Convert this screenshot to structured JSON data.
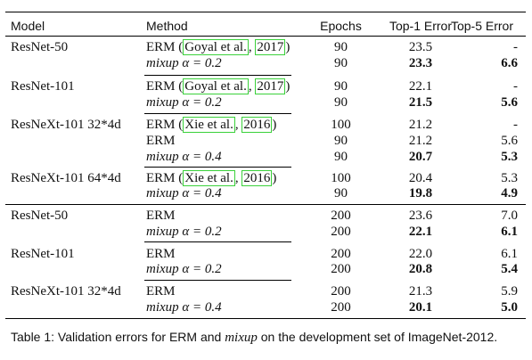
{
  "table": {
    "headers": {
      "model": "Model",
      "method": "Method",
      "epochs": "Epochs",
      "top1": "Top-1 Error",
      "top5": "Top-5 Error"
    },
    "rows": [
      {
        "model": "ResNet-50",
        "method_plain": "ERM",
        "cite_a": "Goyal et al.",
        "cite_b": "2017",
        "method_mixup": "mixup",
        "alpha": "α = 0.2",
        "epochs_1": "90",
        "top1_1": "23.5",
        "top5_1": "-",
        "epochs_2": "90",
        "top1_2": "23.3",
        "top5_2": "6.6"
      },
      {
        "model": "ResNet-101",
        "method_plain": "ERM",
        "cite_a": "Goyal et al.",
        "cite_b": "2017",
        "method_mixup": "mixup",
        "alpha": "α = 0.2",
        "epochs_1": "90",
        "top1_1": "22.1",
        "top5_1": "-",
        "epochs_2": "90",
        "top1_2": "21.5",
        "top5_2": "5.6"
      },
      {
        "model": "ResNeXt-101 32*4d",
        "method_plain": "ERM",
        "cite_a": "Xie et al.",
        "cite_b": "2016",
        "method_erm2": "ERM",
        "method_mixup": "mixup",
        "alpha": "α = 0.4",
        "epochs_1": "100",
        "top1_1": "21.2",
        "top5_1": "-",
        "epochs_2": "90",
        "top1_2": "21.2",
        "top5_2": "5.6",
        "epochs_3": "90",
        "top1_3": "20.7",
        "top5_3": "5.3"
      },
      {
        "model": "ResNeXt-101 64*4d",
        "method_plain": "ERM",
        "cite_a": "Xie et al.",
        "cite_b": "2016",
        "method_mixup": "mixup",
        "alpha": "α = 0.4",
        "epochs_1": "100",
        "top1_1": "20.4",
        "top5_1": "5.3",
        "epochs_2": "90",
        "top1_2": "19.8",
        "top5_2": "4.9"
      },
      {
        "model": "ResNet-50",
        "method_plain": "ERM",
        "method_mixup": "mixup",
        "alpha": "α = 0.2",
        "epochs_1": "200",
        "top1_1": "23.6",
        "top5_1": "7.0",
        "epochs_2": "200",
        "top1_2": "22.1",
        "top5_2": "6.1"
      },
      {
        "model": "ResNet-101",
        "method_plain": "ERM",
        "method_mixup": "mixup",
        "alpha": "α = 0.2",
        "epochs_1": "200",
        "top1_1": "22.0",
        "top5_1": "6.1",
        "epochs_2": "200",
        "top1_2": "20.8",
        "top5_2": "5.4"
      },
      {
        "model": "ResNeXt-101 32*4d",
        "method_plain": "ERM",
        "method_mixup": "mixup",
        "alpha": "α = 0.4",
        "epochs_1": "200",
        "top1_1": "21.3",
        "top5_1": "5.9",
        "epochs_2": "200",
        "top1_2": "20.1",
        "top5_2": "5.0"
      }
    ]
  },
  "caption": {
    "prefix": "Table 1: Validation errors for ERM and ",
    "mixup": "mixup",
    "suffix": " on the development set of ImageNet-2012."
  },
  "colors": {
    "citation_box": "#3ad13a",
    "rule": "#000000"
  }
}
